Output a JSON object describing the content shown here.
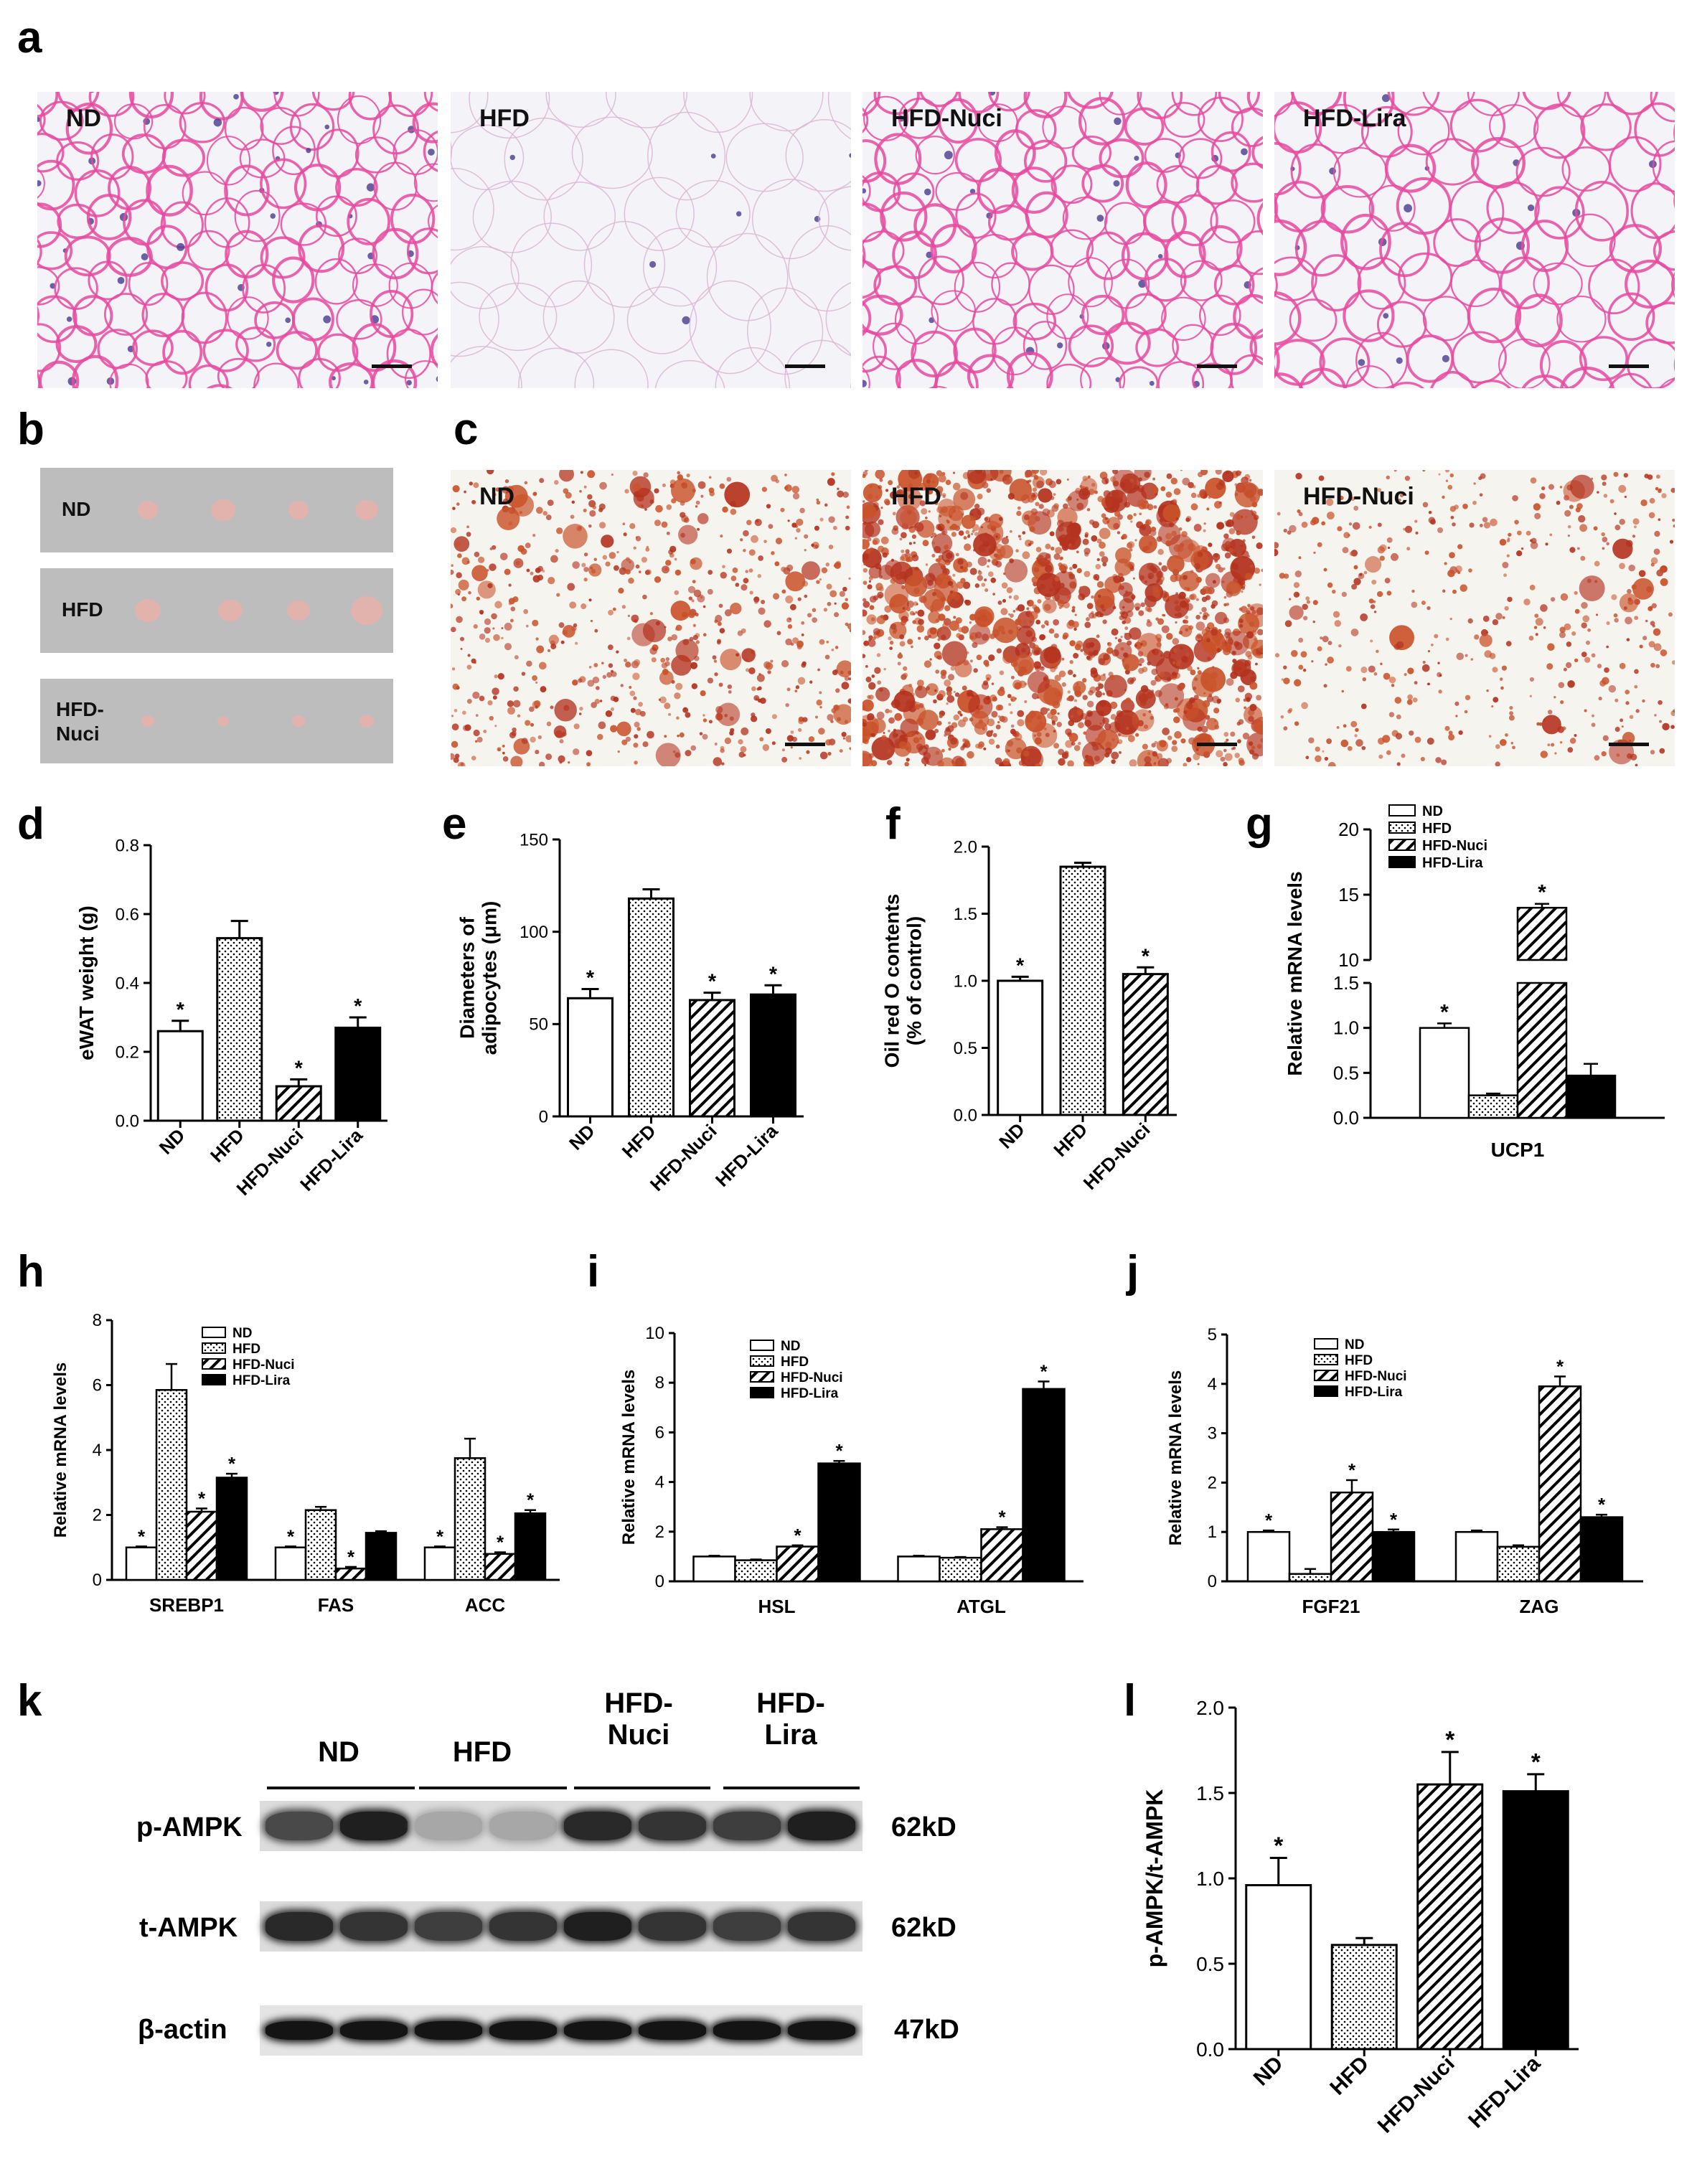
{
  "panel_letters": [
    "a",
    "b",
    "c",
    "d",
    "e",
    "f",
    "g",
    "h",
    "i",
    "j",
    "k",
    "l"
  ],
  "colors": {
    "he_pink": "#e6499f",
    "he_bg": "#f3f3f8",
    "oil_red": "#b4321e",
    "oil_bg": "#f6f4ef",
    "tissue_bg": "#bdbdbd",
    "tissue": "#e2b3ad"
  },
  "panel_a": {
    "images": [
      {
        "label": "ND"
      },
      {
        "label": "HFD"
      },
      {
        "label": "HFD-Nuci"
      },
      {
        "label": "HFD-Lira"
      }
    ]
  },
  "panel_b": {
    "rows": [
      {
        "label": "ND",
        "count": 4
      },
      {
        "label": "HFD",
        "count": 4
      },
      {
        "label": "HFD-Nuci",
        "count": 4
      }
    ]
  },
  "panel_c": {
    "images": [
      {
        "label": "ND"
      },
      {
        "label": "HFD"
      },
      {
        "label": "HFD-Nuci"
      }
    ]
  },
  "chart_data": [
    {
      "panel": "d",
      "type": "bar",
      "categories": [
        "ND",
        "HFD",
        "HFD-Nuci",
        "HFD-Lira"
      ],
      "values": [
        0.26,
        0.53,
        0.1,
        0.27
      ],
      "errors": [
        0.03,
        0.05,
        0.02,
        0.03
      ],
      "sig": [
        true,
        false,
        true,
        true
      ],
      "patterns": [
        "white",
        "dots",
        "hatch",
        "black"
      ],
      "ylabel": "eWAT weight  (g)",
      "ylim": [
        0,
        0.8
      ],
      "yticks": [
        0.0,
        0.2,
        0.4,
        0.6,
        0.8
      ],
      "tick_decimals": 1
    },
    {
      "panel": "e",
      "type": "bar",
      "categories": [
        "ND",
        "HFD",
        "HFD-Nuci",
        "HFD-Lira"
      ],
      "values": [
        64,
        118,
        63,
        66
      ],
      "errors": [
        5,
        5,
        4,
        5
      ],
      "sig": [
        true,
        false,
        true,
        true
      ],
      "patterns": [
        "white",
        "dots",
        "hatch",
        "black"
      ],
      "ylabel": [
        "Diameters of",
        "adipocytes (μm)"
      ],
      "ylim": [
        0,
        150
      ],
      "yticks": [
        0,
        50,
        100,
        150
      ],
      "tick_decimals": 0
    },
    {
      "panel": "f",
      "type": "bar",
      "categories": [
        "ND",
        "HFD",
        "HFD-Nuci"
      ],
      "values": [
        1.0,
        1.85,
        1.05
      ],
      "errors": [
        0.03,
        0.03,
        0.05
      ],
      "sig": [
        true,
        false,
        true
      ],
      "patterns": [
        "white",
        "dots",
        "hatch"
      ],
      "ylabel": [
        "Oil red O contents",
        "(% of control)"
      ],
      "ylim": [
        0,
        2.0
      ],
      "yticks": [
        0.0,
        0.5,
        1.0,
        1.5,
        2.0
      ],
      "tick_decimals": 1
    },
    {
      "panel": "g",
      "type": "bar",
      "categories": [
        "UCP1"
      ],
      "series": [
        {
          "name": "ND",
          "values": [
            1.0
          ],
          "errors": [
            0.05
          ],
          "sig": [
            true
          ],
          "pattern": "white"
        },
        {
          "name": "HFD",
          "values": [
            0.25
          ],
          "errors": [
            0.02
          ],
          "sig": [
            false
          ],
          "pattern": "dots"
        },
        {
          "name": "HFD-Nuci",
          "values": [
            14.0
          ],
          "errors": [
            0.3
          ],
          "sig": [
            true
          ],
          "pattern": "hatch"
        },
        {
          "name": "HFD-Lira",
          "values": [
            0.47
          ],
          "errors": [
            0.13
          ],
          "sig": [
            false
          ],
          "pattern": "black"
        }
      ],
      "ylabel": "Relative mRNA levels",
      "axis_break": {
        "lower": [
          0,
          1.5
        ],
        "upper": [
          10,
          20
        ]
      },
      "yticks": [
        0.0,
        0.5,
        1.0,
        1.5,
        10,
        15,
        20
      ],
      "tick_decimals": 1
    },
    {
      "panel": "h",
      "type": "bar",
      "categories": [
        "SREBP1",
        "FAS",
        "ACC"
      ],
      "series": [
        {
          "name": "ND",
          "values": [
            1.0,
            1.0,
            1.0
          ],
          "errors": [
            0.03,
            0.03,
            0.03
          ],
          "sig": [
            true,
            true,
            true
          ],
          "pattern": "white"
        },
        {
          "name": "HFD",
          "values": [
            5.85,
            2.15,
            3.75
          ],
          "errors": [
            0.8,
            0.1,
            0.6
          ],
          "sig": [
            false,
            false,
            false
          ],
          "pattern": "dots"
        },
        {
          "name": "HFD-Nuci",
          "values": [
            2.1,
            0.35,
            0.8
          ],
          "errors": [
            0.1,
            0.05,
            0.05
          ],
          "sig": [
            true,
            true,
            true
          ],
          "pattern": "hatch"
        },
        {
          "name": "HFD-Lira",
          "values": [
            3.15,
            1.45,
            2.05
          ],
          "errors": [
            0.12,
            0.05,
            0.1
          ],
          "sig": [
            true,
            false,
            true
          ],
          "pattern": "black"
        }
      ],
      "ylabel": "Relative mRNA levels",
      "ylim": [
        0,
        8
      ],
      "yticks": [
        0,
        2,
        4,
        6,
        8
      ],
      "tick_decimals": 0
    },
    {
      "panel": "i",
      "type": "bar",
      "categories": [
        "HSL",
        "ATGL"
      ],
      "series": [
        {
          "name": "ND",
          "values": [
            1.0,
            1.0
          ],
          "errors": [
            0.03,
            0.03
          ],
          "sig": [
            false,
            false
          ],
          "pattern": "white"
        },
        {
          "name": "HFD",
          "values": [
            0.85,
            0.95
          ],
          "errors": [
            0.03,
            0.03
          ],
          "sig": [
            false,
            false
          ],
          "pattern": "dots"
        },
        {
          "name": "HFD-Nuci",
          "values": [
            1.4,
            2.1
          ],
          "errors": [
            0.05,
            0.08
          ],
          "sig": [
            true,
            true
          ],
          "pattern": "hatch"
        },
        {
          "name": "HFD-Lira",
          "values": [
            4.75,
            7.75
          ],
          "errors": [
            0.1,
            0.3
          ],
          "sig": [
            true,
            true
          ],
          "pattern": "black"
        }
      ],
      "ylabel": "Relative mRNA levels",
      "ylim": [
        0,
        10
      ],
      "yticks": [
        0,
        2,
        4,
        6,
        8,
        10
      ],
      "tick_decimals": 0
    },
    {
      "panel": "j",
      "type": "bar",
      "categories": [
        "FGF21",
        "ZAG"
      ],
      "series": [
        {
          "name": "ND",
          "values": [
            1.0,
            1.0
          ],
          "errors": [
            0.03,
            0.03
          ],
          "sig": [
            true,
            false
          ],
          "pattern": "white"
        },
        {
          "name": "HFD",
          "values": [
            0.15,
            0.7
          ],
          "errors": [
            0.1,
            0.03
          ],
          "sig": [
            false,
            false
          ],
          "pattern": "dots"
        },
        {
          "name": "HFD-Nuci",
          "values": [
            1.8,
            3.95
          ],
          "errors": [
            0.25,
            0.2
          ],
          "sig": [
            true,
            true
          ],
          "pattern": "hatch"
        },
        {
          "name": "HFD-Lira",
          "values": [
            1.0,
            1.3
          ],
          "errors": [
            0.05,
            0.05
          ],
          "sig": [
            true,
            true
          ],
          "pattern": "black"
        }
      ],
      "ylabel": "Relative mRNA levels",
      "ylim": [
        0,
        5
      ],
      "yticks": [
        0,
        1,
        2,
        3,
        4,
        5
      ],
      "tick_decimals": 0
    },
    {
      "panel": "l",
      "type": "bar",
      "categories": [
        "ND",
        "HFD",
        "HFD-Nuci",
        "HFD-Lira"
      ],
      "values": [
        0.96,
        0.61,
        1.55,
        1.51
      ],
      "errors": [
        0.16,
        0.04,
        0.19,
        0.1
      ],
      "sig": [
        true,
        false,
        true,
        true
      ],
      "patterns": [
        "white",
        "dots",
        "hatch",
        "black"
      ],
      "ylabel": "p-AMPK/t-AMPK",
      "ylim": [
        0,
        2.0
      ],
      "yticks": [
        0.0,
        0.5,
        1.0,
        1.5,
        2.0
      ],
      "tick_decimals": 1
    }
  ],
  "panel_k": {
    "groups": [
      "ND",
      "HFD",
      "HFD-\nNuci",
      "HFD-\nLira"
    ],
    "blots": [
      {
        "name": "p-AMPK",
        "size": "62kD",
        "intensity": [
          0.75,
          0.95,
          0.3,
          0.3,
          0.9,
          0.85,
          0.8,
          0.95
        ]
      },
      {
        "name": "t-AMPK",
        "size": "62kD",
        "intensity": [
          0.9,
          0.85,
          0.8,
          0.85,
          0.95,
          0.85,
          0.8,
          0.85
        ]
      },
      {
        "name": "β-actin",
        "size": "47kD",
        "intensity": [
          1,
          1,
          1,
          1,
          1,
          1,
          1,
          1
        ]
      }
    ]
  }
}
